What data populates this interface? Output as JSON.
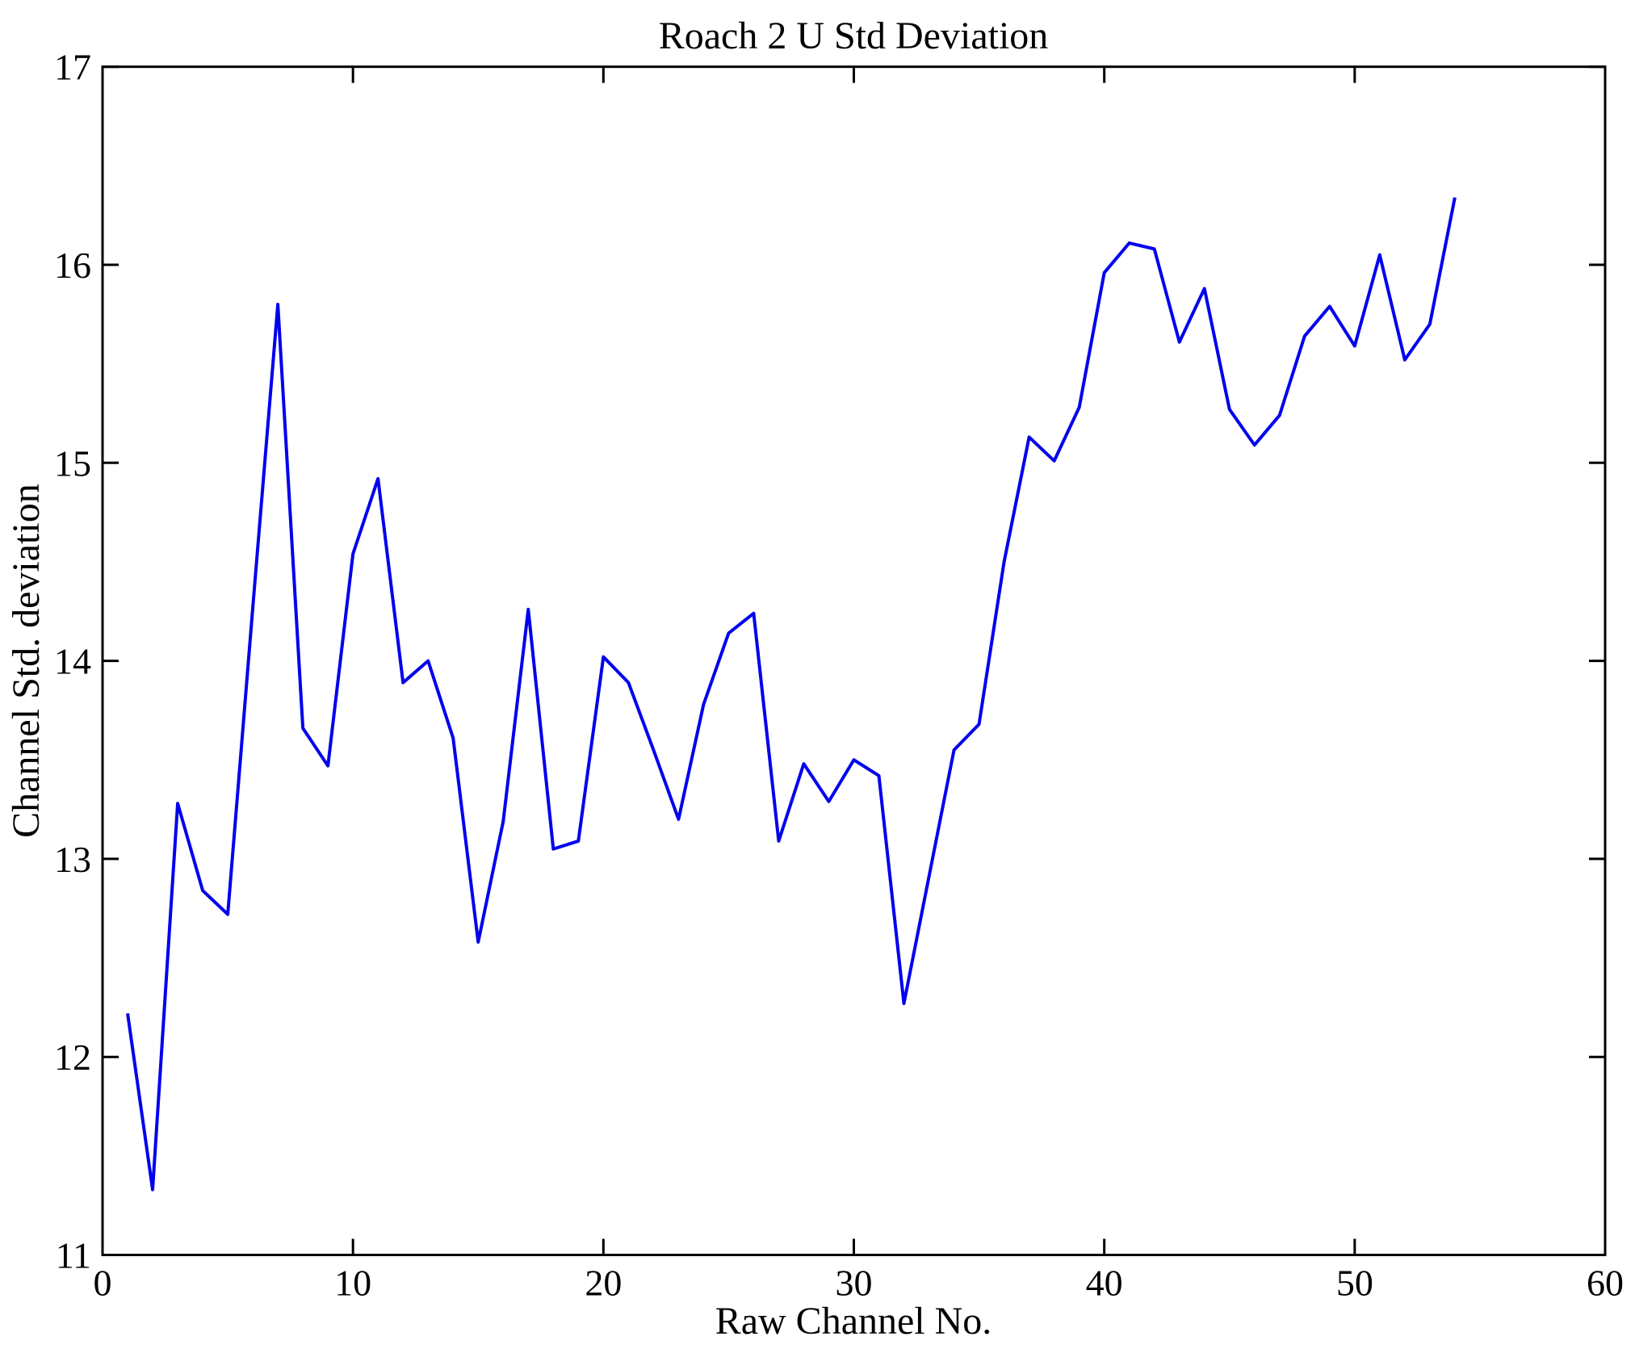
{
  "chart_data": {
    "type": "line",
    "title": "Roach 2 U Std Deviation",
    "xlabel": "Raw Channel No.",
    "ylabel": "Channel Std. deviation",
    "xlim": [
      0,
      60
    ],
    "ylim": [
      11,
      17
    ],
    "xticks": [
      0,
      10,
      20,
      30,
      40,
      50,
      60
    ],
    "yticks": [
      11,
      12,
      13,
      14,
      15,
      16,
      17
    ],
    "grid": false,
    "legend": "none",
    "box": true,
    "line_color": "#0000EE",
    "axis_color": "#000000",
    "background_color": "#ffffff",
    "series": [
      {
        "name": "channel-std-deviation",
        "x": [
          1,
          2,
          3,
          4,
          5,
          6,
          7,
          8,
          9,
          10,
          11,
          12,
          13,
          14,
          15,
          16,
          17,
          18,
          19,
          20,
          21,
          22,
          23,
          24,
          25,
          26,
          27,
          28,
          29,
          30,
          31,
          32,
          33,
          34,
          35,
          36,
          37,
          38,
          39,
          40,
          41,
          42,
          43,
          44,
          45,
          46,
          47,
          48,
          49,
          50,
          51,
          52,
          53,
          54
        ],
        "values": [
          12.22,
          11.33,
          13.28,
          12.84,
          12.72,
          14.27,
          15.8,
          13.66,
          13.47,
          14.54,
          14.92,
          13.89,
          14.0,
          13.61,
          12.58,
          13.19,
          14.26,
          13.05,
          13.09,
          14.02,
          13.89,
          13.55,
          13.2,
          13.78,
          14.14,
          14.24,
          13.09,
          13.48,
          13.29,
          13.5,
          13.42,
          12.27,
          12.91,
          13.55,
          13.68,
          14.5,
          15.13,
          15.01,
          15.28,
          15.96,
          16.11,
          16.08,
          15.61,
          15.88,
          15.27,
          15.09,
          15.24,
          15.64,
          15.79,
          15.59,
          16.05,
          15.52,
          15.7,
          16.34
        ]
      }
    ]
  }
}
